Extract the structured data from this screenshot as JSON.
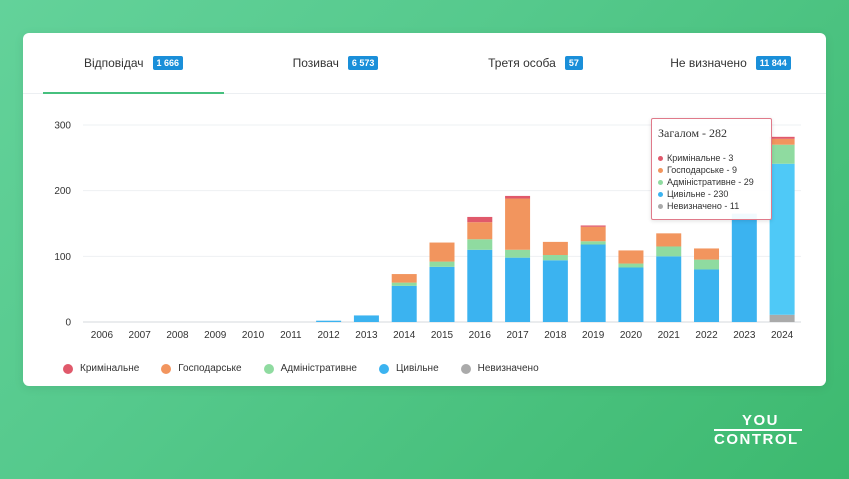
{
  "tabs": [
    {
      "label": "Відповідач",
      "count": "1 666",
      "active": true
    },
    {
      "label": "Позивач",
      "count": "6 573",
      "active": false
    },
    {
      "label": "Третя особа",
      "count": "57",
      "active": false
    },
    {
      "label": "Не визначено",
      "count": "11 844",
      "active": false
    }
  ],
  "colors": {
    "accent": "#46c07e",
    "badge": "#1a8fd9",
    "criminal": "#e0596b",
    "economic": "#f2955e",
    "administrative": "#8fdba0",
    "civil": "#3bb3f0",
    "undetermined": "#aaaaaa"
  },
  "chart_data": {
    "type": "bar",
    "stacked": true,
    "categories": [
      "2006",
      "2007",
      "2008",
      "2009",
      "2010",
      "2011",
      "2012",
      "2013",
      "2014",
      "2015",
      "2016",
      "2017",
      "2018",
      "2019",
      "2020",
      "2021",
      "2022",
      "2023",
      "2024"
    ],
    "ylim": [
      0,
      300
    ],
    "yticks": [
      0,
      100,
      200,
      300
    ],
    "grid": true,
    "series": [
      {
        "name": "Невизначено",
        "color": "#aaaaaa",
        "values": [
          0,
          0,
          0,
          0,
          0,
          0,
          0,
          0,
          0,
          0,
          0,
          0,
          0,
          0,
          0,
          0,
          0,
          0,
          11
        ]
      },
      {
        "name": "Цивільне",
        "color": "#3bb3f0",
        "values": [
          0,
          0,
          0,
          0,
          0,
          0,
          2,
          10,
          55,
          84,
          110,
          98,
          94,
          118,
          83,
          100,
          80,
          165,
          230
        ]
      },
      {
        "name": "Адміністративне",
        "color": "#8fdba0",
        "values": [
          0,
          0,
          0,
          0,
          0,
          0,
          0,
          0,
          5,
          8,
          16,
          12,
          8,
          5,
          6,
          15,
          15,
          0,
          29
        ]
      },
      {
        "name": "Господарське",
        "color": "#f2955e",
        "values": [
          0,
          0,
          0,
          0,
          0,
          0,
          0,
          0,
          13,
          29,
          26,
          78,
          20,
          22,
          20,
          20,
          17,
          0,
          9
        ]
      },
      {
        "name": "Кримінальне",
        "color": "#e0596b",
        "values": [
          0,
          0,
          0,
          0,
          0,
          0,
          0,
          0,
          0,
          0,
          8,
          4,
          0,
          2,
          0,
          0,
          0,
          0,
          3
        ]
      }
    ],
    "legend_order": [
      "Кримінальне",
      "Господарське",
      "Адміністративне",
      "Цивільне",
      "Невизначено"
    ],
    "legend_placement": "bottom-left",
    "tooltip": {
      "title": "Загалом - 282",
      "category": "2024",
      "rows": [
        {
          "text": "Кримінальне - 3",
          "color": "#e0596b"
        },
        {
          "text": "Господарське - 9",
          "color": "#f2955e"
        },
        {
          "text": "Адміністративне - 29",
          "color": "#8fdba0"
        },
        {
          "text": "Цивільне - 230",
          "color": "#3bb3f0"
        },
        {
          "text": "Невизначено - 11",
          "color": "#aaaaaa"
        }
      ]
    }
  },
  "logo": {
    "top": "YOU",
    "bottom": "CONTROL"
  }
}
